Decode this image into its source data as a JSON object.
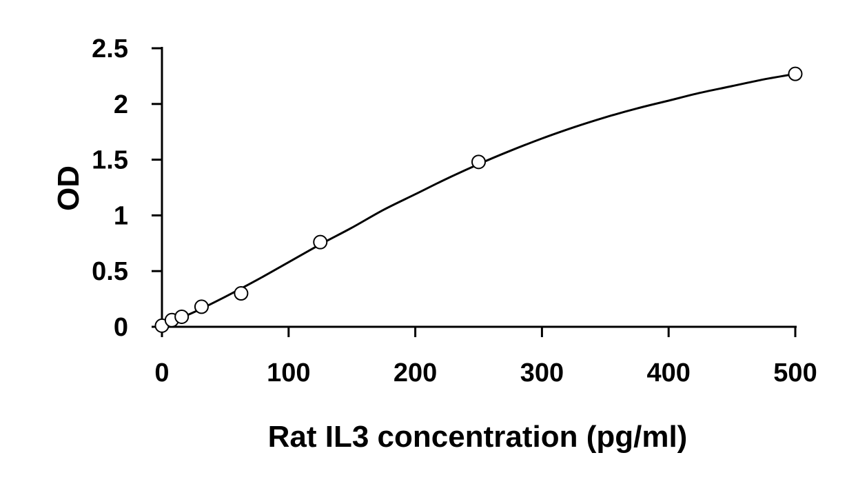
{
  "chart_data": {
    "type": "scatter",
    "title": "",
    "xlabel": "Rat IL3 concentration (pg/ml)",
    "ylabel": "OD",
    "xlim": [
      0,
      500
    ],
    "ylim": [
      0,
      2.5
    ],
    "x_ticks": [
      0,
      100,
      200,
      300,
      400,
      500
    ],
    "x_tick_labels": [
      "0",
      "100",
      "200",
      "300",
      "400",
      "500"
    ],
    "y_ticks": [
      0,
      0.5,
      1,
      1.5,
      2,
      2.5
    ],
    "y_tick_labels": [
      "0",
      "0.5",
      "1",
      "1.5",
      "2",
      "2.5"
    ],
    "grid": false,
    "series": [
      {
        "marker": "open-circle",
        "x": [
          0,
          7.8,
          15.6,
          31.25,
          62.5,
          125,
          250,
          500
        ],
        "y": [
          0.01,
          0.06,
          0.09,
          0.18,
          0.3,
          0.76,
          1.48,
          2.27
        ]
      }
    ],
    "fit_curve": {
      "style": "smooth-line",
      "x": [
        0,
        25,
        50,
        75,
        100,
        125,
        150,
        175,
        200,
        225,
        250,
        275,
        300,
        325,
        350,
        375,
        400,
        425,
        450,
        475,
        500
      ],
      "y": [
        0.01,
        0.13,
        0.27,
        0.42,
        0.58,
        0.74,
        0.89,
        1.05,
        1.19,
        1.33,
        1.46,
        1.58,
        1.69,
        1.79,
        1.88,
        1.96,
        2.03,
        2.1,
        2.16,
        2.22,
        2.27
      ]
    },
    "colors": {
      "axis": "#000000",
      "line": "#000000",
      "marker_stroke": "#000000",
      "marker_fill": "#ffffff"
    }
  }
}
